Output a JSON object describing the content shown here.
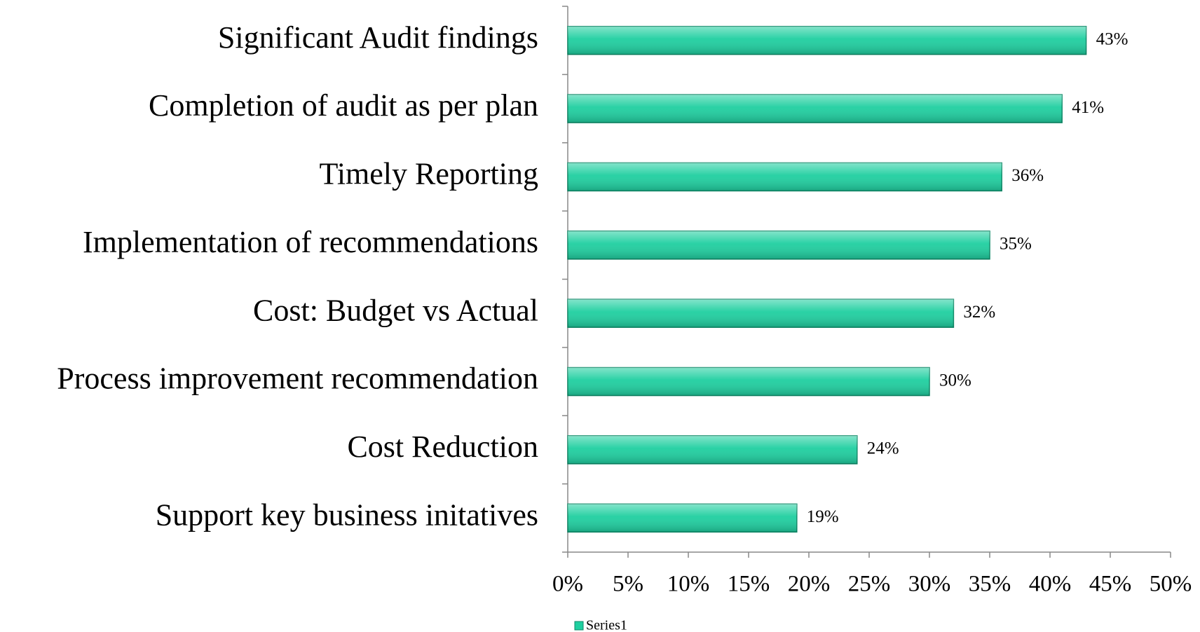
{
  "chart_data": {
    "type": "bar",
    "orientation": "horizontal",
    "categories": [
      "Significant Audit findings",
      "Completion of audit as per plan",
      "Timely Reporting",
      "Implementation of recommendations",
      "Cost: Budget vs Actual",
      "Process improvement recommendation",
      "Cost Reduction",
      "Support key business initatives"
    ],
    "series": [
      {
        "name": "Series1",
        "color": "#1fcfa0",
        "values": [
          43,
          41,
          36,
          35,
          32,
          30,
          24,
          19
        ],
        "value_labels": [
          "43%",
          "41%",
          "36%",
          "35%",
          "32%",
          "30%",
          "24%",
          "19%"
        ]
      }
    ],
    "xlim": [
      0,
      50
    ],
    "xticks": [
      {
        "value": 0,
        "label": "0%"
      },
      {
        "value": 5,
        "label": "5%"
      },
      {
        "value": 10,
        "label": "10%"
      },
      {
        "value": 15,
        "label": "15%"
      },
      {
        "value": 20,
        "label": "20%"
      },
      {
        "value": 25,
        "label": "25%"
      },
      {
        "value": 30,
        "label": "30%"
      },
      {
        "value": 35,
        "label": "35%"
      },
      {
        "value": 40,
        "label": "40%"
      },
      {
        "value": 45,
        "label": "45%"
      },
      {
        "value": 50,
        "label": "50%"
      }
    ],
    "legend": "bottom"
  }
}
